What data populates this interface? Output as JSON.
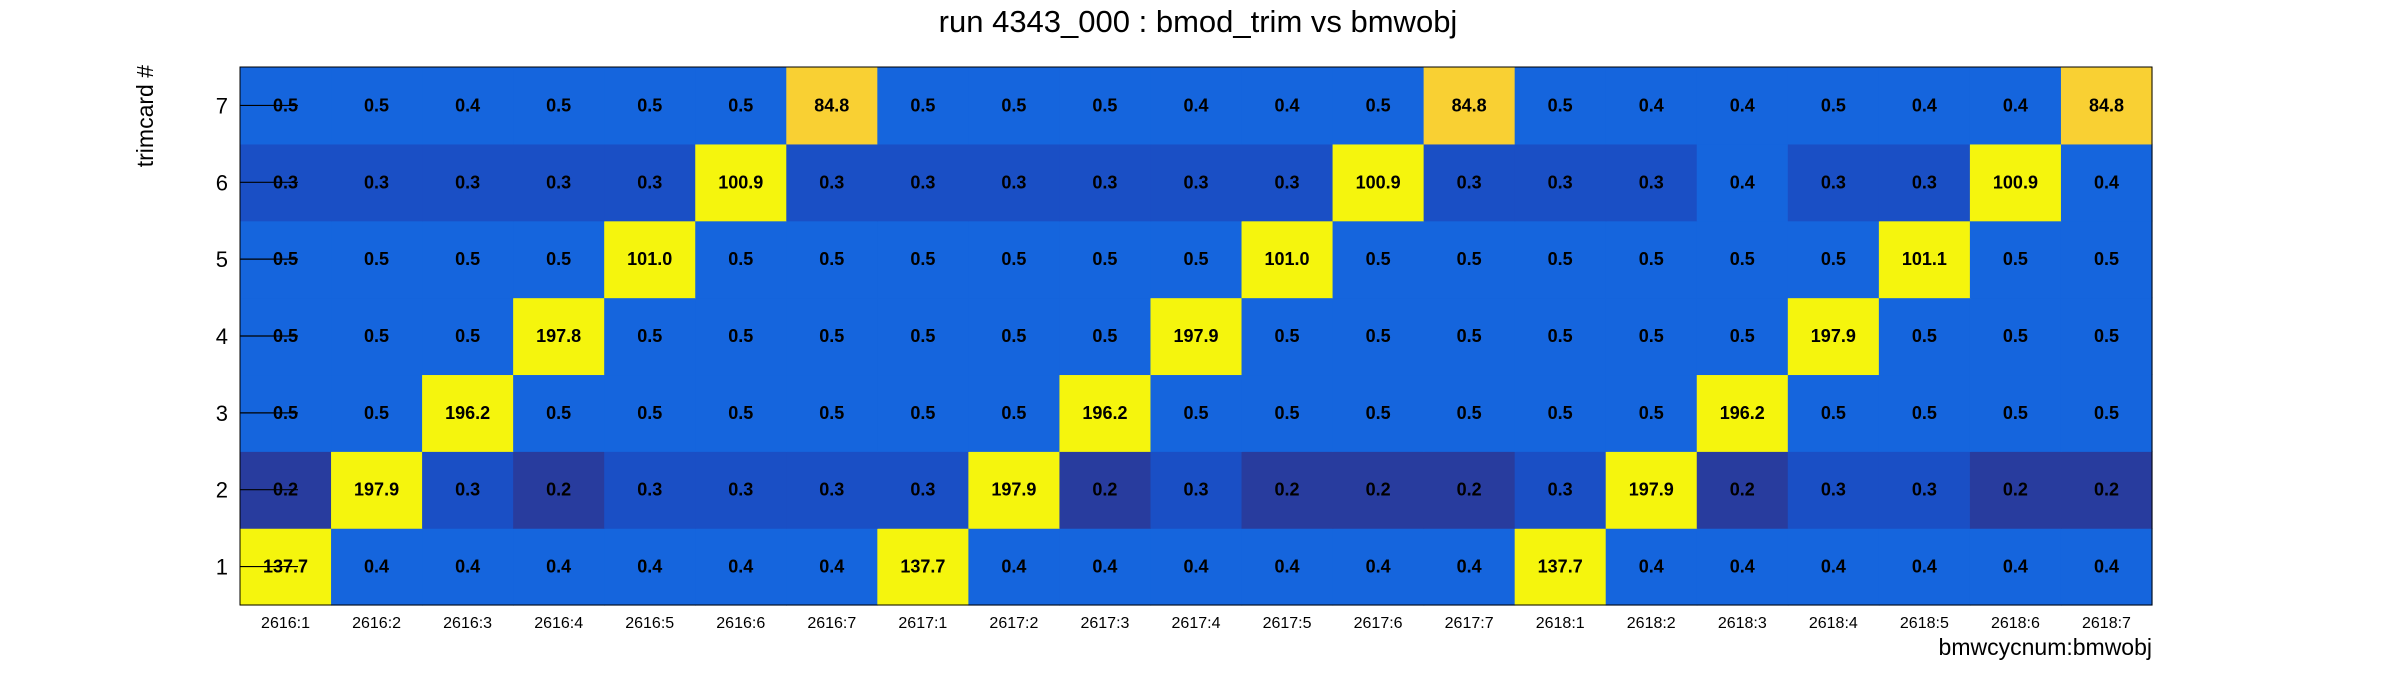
{
  "chart_data": {
    "type": "heatmap",
    "title": "run 4343_000 : bmod_trim vs bmwobj",
    "xlabel": "bmwcycnum:bmwobj",
    "ylabel": "trimcard #",
    "x_categories": [
      "2616:1",
      "2616:2",
      "2616:3",
      "2616:4",
      "2616:5",
      "2616:6",
      "2616:7",
      "2617:1",
      "2617:2",
      "2617:3",
      "2617:4",
      "2617:5",
      "2617:6",
      "2617:7",
      "2618:1",
      "2618:2",
      "2618:3",
      "2618:4",
      "2618:5",
      "2618:6",
      "2618:7"
    ],
    "y_categories": [
      "1",
      "2",
      "3",
      "4",
      "5",
      "6",
      "7"
    ],
    "values": [
      [
        "137.7",
        "0.4",
        "0.4",
        "0.4",
        "0.4",
        "0.4",
        "0.4",
        "137.7",
        "0.4",
        "0.4",
        "0.4",
        "0.4",
        "0.4",
        "0.4",
        "137.7",
        "0.4",
        "0.4",
        "0.4",
        "0.4",
        "0.4",
        "0.4"
      ],
      [
        "0.2",
        "197.9",
        "0.3",
        "0.2",
        "0.3",
        "0.3",
        "0.3",
        "0.3",
        "197.9",
        "0.2",
        "0.3",
        "0.2",
        "0.2",
        "0.2",
        "0.3",
        "197.9",
        "0.2",
        "0.3",
        "0.3",
        "0.2",
        "0.2"
      ],
      [
        "0.5",
        "0.5",
        "196.2",
        "0.5",
        "0.5",
        "0.5",
        "0.5",
        "0.5",
        "0.5",
        "196.2",
        "0.5",
        "0.5",
        "0.5",
        "0.5",
        "0.5",
        "0.5",
        "196.2",
        "0.5",
        "0.5",
        "0.5",
        "0.5"
      ],
      [
        "0.5",
        "0.5",
        "0.5",
        "197.8",
        "0.5",
        "0.5",
        "0.5",
        "0.5",
        "0.5",
        "0.5",
        "197.9",
        "0.5",
        "0.5",
        "0.5",
        "0.5",
        "0.5",
        "0.5",
        "197.9",
        "0.5",
        "0.5",
        "0.5"
      ],
      [
        "0.5",
        "0.5",
        "0.5",
        "0.5",
        "101.0",
        "0.5",
        "0.5",
        "0.5",
        "0.5",
        "0.5",
        "0.5",
        "101.0",
        "0.5",
        "0.5",
        "0.5",
        "0.5",
        "0.5",
        "0.5",
        "101.1",
        "0.5",
        "0.5"
      ],
      [
        "0.3",
        "0.3",
        "0.3",
        "0.3",
        "0.3",
        "100.9",
        "0.3",
        "0.3",
        "0.3",
        "0.3",
        "0.3",
        "0.3",
        "100.9",
        "0.3",
        "0.3",
        "0.3",
        "0.4",
        "0.3",
        "0.3",
        "100.9",
        "0.4"
      ],
      [
        "0.5",
        "0.5",
        "0.4",
        "0.5",
        "0.5",
        "0.5",
        "84.8",
        "0.5",
        "0.5",
        "0.5",
        "0.4",
        "0.4",
        "0.5",
        "84.8",
        "0.5",
        "0.4",
        "0.4",
        "0.5",
        "0.4",
        "0.4",
        "84.8"
      ]
    ],
    "colors": {
      "high": "#f5f50d",
      "mid_high": "#f8cc2c",
      "mid": "#f9d033",
      "base": "#1565dd",
      "low": "#1a4fc5",
      "lowest": "#283c9e"
    }
  }
}
